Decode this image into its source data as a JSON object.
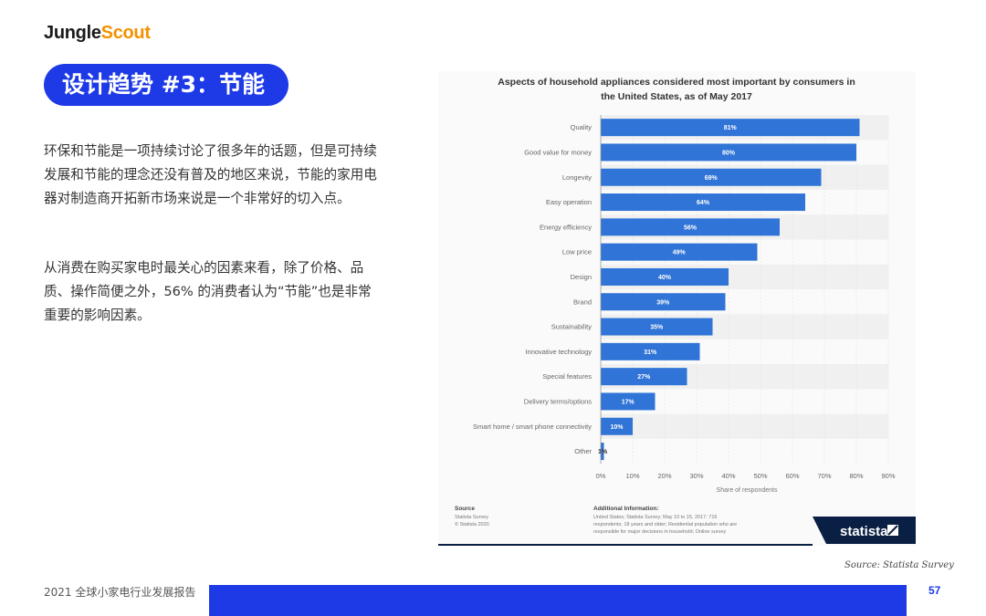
{
  "logo": {
    "part1": "Jungle",
    "part2": "Scout"
  },
  "section_title": "设计趋势 #3：节能",
  "body": {
    "p1": "环保和节能是一项持续讨论了很多年的话题，但是可持续发展和节能的理念还没有普及的地区来说，节能的家用电器对制造商开拓新市场来说是一个非常好的切入点。",
    "p2": "从消费在购买家电时最关心的因素来看，除了价格、品质、操作简便之外，56% 的消费者认为“节能”也是非常重要的影响因素。"
  },
  "colors": {
    "accent": "#1d3ae6",
    "bar": "#2f74d6",
    "logo_orange": "#f39200"
  },
  "chart_data": {
    "type": "bar",
    "orientation": "horizontal",
    "title": "Aspects of household appliances considered most important by consumers in the United States, as of May 2017",
    "categories": [
      "Quality",
      "Good value for money",
      "Longevity",
      "Easy operation",
      "Energy efficiency",
      "Low price",
      "Design",
      "Brand",
      "Sustainability",
      "Innovative technology",
      "Special features",
      "Delivery terms/options",
      "Smart home / smart phone connectivity",
      "Other"
    ],
    "values": [
      81,
      80,
      69,
      64,
      56,
      49,
      40,
      39,
      35,
      31,
      27,
      17,
      10,
      1
    ],
    "data_labels": [
      "81%",
      "80%",
      "69%",
      "64%",
      "56%",
      "49%",
      "40%",
      "39%",
      "35%",
      "31%",
      "27%",
      "17%",
      "10%",
      "1%"
    ],
    "xlim": [
      0,
      90
    ],
    "xticks": [
      "0%",
      "10%",
      "20%",
      "30%",
      "40%",
      "50%",
      "60%",
      "70%",
      "80%",
      "90%"
    ],
    "xlabel": "Share of respondents",
    "grid": true
  },
  "chart_footer": {
    "source_heading": "Source",
    "source_line1": "Statista Survey",
    "source_line2": "© Statista 2020",
    "info_heading": "Additional Information:",
    "info_line1": "United States; Statista Survey; May 10 to 15, 2017; 716",
    "info_line2": "respondents; 18 years and older; Residential population who are",
    "info_line3": "responsible for major decisions in household; Online survey",
    "brand": "statista"
  },
  "source_note": "Source: Statista Survey",
  "footer": {
    "report_title": "2021 全球小家电行业发展报告",
    "page": "57"
  }
}
